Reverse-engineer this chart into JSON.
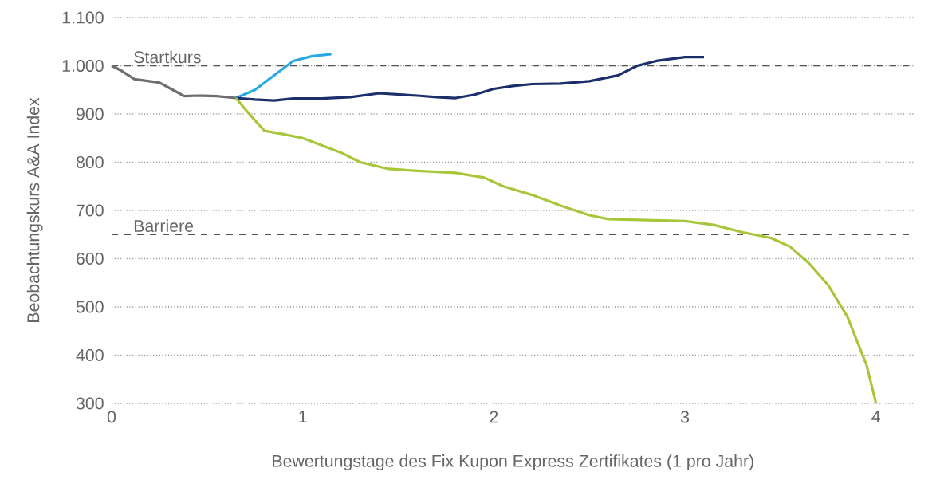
{
  "chart_data": {
    "type": "line",
    "xlabel": "Bewertungstage des Fix Kupon Express Zertifikates (1 pro Jahr)",
    "ylabel": "Beobachtungskurs A&A Index",
    "xlim": [
      0,
      4.2
    ],
    "ylim": [
      300,
      1100
    ],
    "xticks": [
      0,
      1,
      2,
      3,
      4
    ],
    "yticks": [
      {
        "value": 300,
        "label": "300"
      },
      {
        "value": 400,
        "label": "400"
      },
      {
        "value": 500,
        "label": "500"
      },
      {
        "value": 600,
        "label": "600"
      },
      {
        "value": 700,
        "label": "700"
      },
      {
        "value": 800,
        "label": "800"
      },
      {
        "value": 900,
        "label": "900"
      },
      {
        "value": 1000,
        "label": "1.000"
      },
      {
        "value": 1100,
        "label": "1.100"
      }
    ],
    "grid": "y",
    "ref_lines": [
      {
        "axis": "y",
        "value": 1000,
        "label": "Startkurs",
        "color": "#555555",
        "line_style": "dashed"
      },
      {
        "axis": "y",
        "value": 650,
        "label": "Barriere",
        "color": "#555555",
        "line_style": "dashed"
      }
    ],
    "series": [
      {
        "color": "#6e6e6e",
        "x": [
          0,
          0.05,
          0.12,
          0.25,
          0.32,
          0.38,
          0.45,
          0.55,
          0.65
        ],
        "values": [
          1000,
          990,
          972,
          965,
          950,
          937,
          938,
          937,
          933
        ]
      },
      {
        "color": "#29a9e1",
        "x": [
          0.65,
          0.75,
          0.85,
          0.95,
          1.05,
          1.15
        ],
        "values": [
          933,
          950,
          980,
          1010,
          1020,
          1024
        ]
      },
      {
        "color": "#1c2f6b",
        "x": [
          0.65,
          0.75,
          0.85,
          0.95,
          1.1,
          1.25,
          1.4,
          1.6,
          1.7,
          1.8,
          1.9,
          2.0,
          2.1,
          2.2,
          2.35,
          2.5,
          2.65,
          2.75,
          2.85,
          3.0,
          3.1
        ],
        "values": [
          933,
          930,
          928,
          932,
          932,
          935,
          943,
          938,
          935,
          933,
          940,
          952,
          958,
          962,
          963,
          968,
          980,
          1000,
          1010,
          1018,
          1018
        ]
      },
      {
        "color": "#a8c63a",
        "x": [
          0.65,
          0.72,
          0.8,
          0.9,
          1.0,
          1.1,
          1.2,
          1.3,
          1.45,
          1.6,
          1.8,
          1.95,
          2.05,
          2.2,
          2.35,
          2.5,
          2.6,
          2.8,
          3.0,
          3.15,
          3.3,
          3.45,
          3.55,
          3.65,
          3.75,
          3.85,
          3.95,
          4.0
        ],
        "values": [
          933,
          900,
          865,
          858,
          850,
          835,
          820,
          800,
          786,
          782,
          778,
          768,
          750,
          732,
          710,
          690,
          682,
          680,
          678,
          670,
          655,
          643,
          625,
          590,
          545,
          480,
          380,
          300
        ]
      }
    ]
  }
}
